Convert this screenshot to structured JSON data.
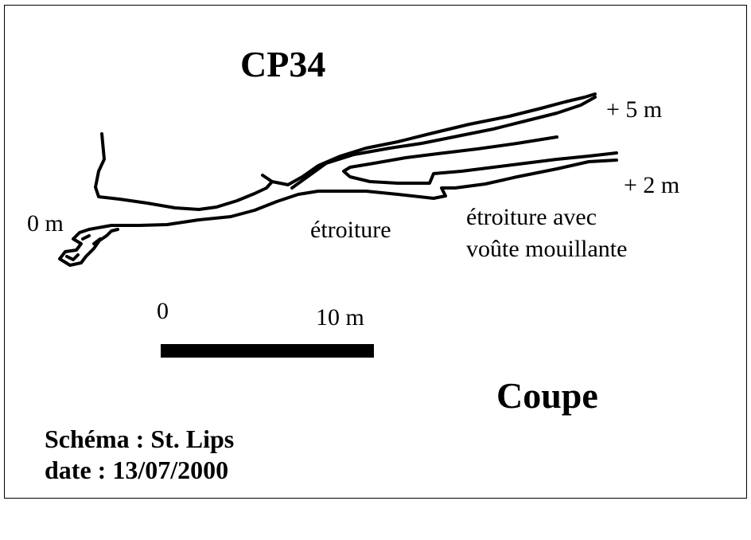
{
  "title": "CP34",
  "elevations": {
    "top": "+ 5 m",
    "middle": "+ 2 m",
    "entrance": "0 m"
  },
  "annotations": {
    "narrowing": "étroiture",
    "narrowing_wet_line1": "étroiture avec",
    "narrowing_wet_line2": "voûte mouillante"
  },
  "scale": {
    "start_label": "0",
    "end_label": "10 m"
  },
  "view_type": "Coupe",
  "credits": {
    "author": "Schéma : St. Lips",
    "date": "date : 13/07/2000"
  },
  "colors": {
    "ink": "#000000",
    "paper": "#ffffff"
  }
}
